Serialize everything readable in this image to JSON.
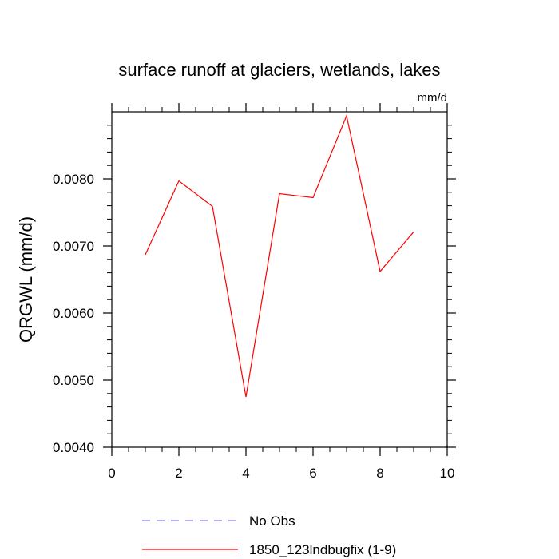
{
  "chart_data": {
    "type": "line",
    "title": "surface runoff at glaciers, wetlands, lakes",
    "units": "mm/d",
    "ylabel": "QRGWL  (mm/d)",
    "xlabel": "",
    "xlim": [
      0,
      10
    ],
    "ylim": [
      0.004,
      0.009
    ],
    "x_ticks": [
      0,
      2,
      4,
      6,
      8,
      10
    ],
    "x_tick_labels": [
      "0",
      "2",
      "4",
      "6",
      "8",
      "10"
    ],
    "y_ticks": [
      0.004,
      0.005,
      0.006,
      0.007,
      0.008
    ],
    "y_tick_labels": [
      "0.0040",
      "0.0050",
      "0.0060",
      "0.0070",
      "0.0080"
    ],
    "grid": false,
    "legend_position": "bottom",
    "series": [
      {
        "name": "No Obs",
        "color": "#8080ff",
        "dash": "dashed",
        "x": [],
        "y": []
      },
      {
        "name": "1850_123lndbugfix (1-9)",
        "color": "#ff0000",
        "dash": "solid",
        "x": [
          1,
          2,
          3,
          4,
          5,
          6,
          7,
          8,
          9
        ],
        "y": [
          0.00687,
          0.00797,
          0.00759,
          0.00475,
          0.00778,
          0.00772,
          0.00894,
          0.00662,
          0.00721
        ]
      }
    ]
  }
}
